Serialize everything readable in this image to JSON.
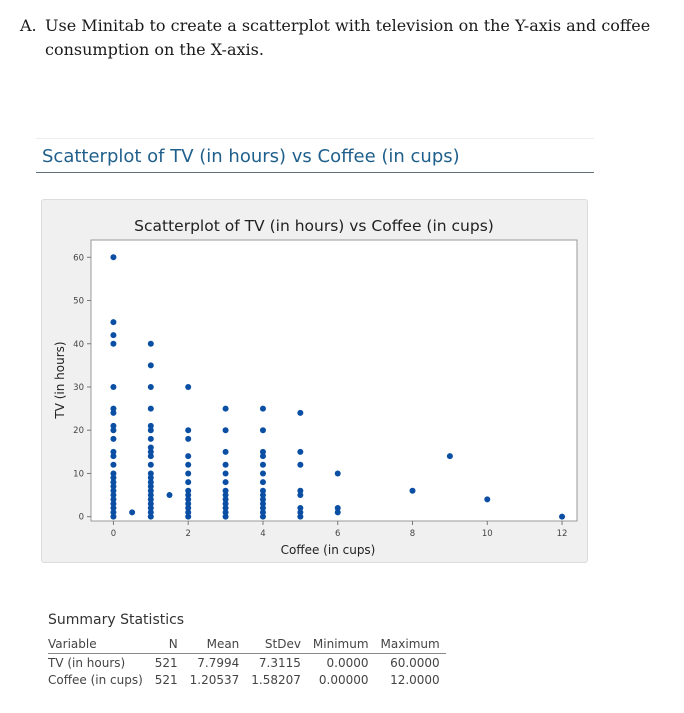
{
  "question": {
    "letter": "A.",
    "text": "Use Minitab to create a scatterplot with television on the Y-axis and coffee consumption on the X-axis."
  },
  "section_title": "Scatterplot of TV (in hours) vs Coffee (in cups)",
  "chart_data": {
    "type": "scatter",
    "title": "Scatterplot of TV (in hours) vs Coffee (in cups)",
    "xlabel": "Coffee (in cups)",
    "ylabel": "TV (in hours)",
    "xlim": [
      -0.6,
      12.4
    ],
    "ylim": [
      -1,
      64
    ],
    "xticks": [
      0,
      2,
      4,
      6,
      8,
      10,
      12
    ],
    "yticks": [
      0,
      10,
      20,
      30,
      40,
      50,
      60
    ],
    "grid": false,
    "marker_color": "#0a4fa3",
    "points": [
      {
        "x": 0,
        "y": 0
      },
      {
        "x": 0,
        "y": 1
      },
      {
        "x": 0,
        "y": 2
      },
      {
        "x": 0,
        "y": 3
      },
      {
        "x": 0,
        "y": 4
      },
      {
        "x": 0,
        "y": 5
      },
      {
        "x": 0,
        "y": 6
      },
      {
        "x": 0,
        "y": 7
      },
      {
        "x": 0,
        "y": 8
      },
      {
        "x": 0,
        "y": 9
      },
      {
        "x": 0,
        "y": 10
      },
      {
        "x": 0,
        "y": 12
      },
      {
        "x": 0,
        "y": 14
      },
      {
        "x": 0,
        "y": 15
      },
      {
        "x": 0,
        "y": 18
      },
      {
        "x": 0,
        "y": 20
      },
      {
        "x": 0,
        "y": 21
      },
      {
        "x": 0,
        "y": 24
      },
      {
        "x": 0,
        "y": 25
      },
      {
        "x": 0,
        "y": 30
      },
      {
        "x": 0,
        "y": 40
      },
      {
        "x": 0,
        "y": 42
      },
      {
        "x": 0,
        "y": 45
      },
      {
        "x": 0,
        "y": 60
      },
      {
        "x": 0.5,
        "y": 1
      },
      {
        "x": 1,
        "y": 0
      },
      {
        "x": 1,
        "y": 1
      },
      {
        "x": 1,
        "y": 2
      },
      {
        "x": 1,
        "y": 3
      },
      {
        "x": 1,
        "y": 4
      },
      {
        "x": 1,
        "y": 5
      },
      {
        "x": 1,
        "y": 6
      },
      {
        "x": 1,
        "y": 7
      },
      {
        "x": 1,
        "y": 8
      },
      {
        "x": 1,
        "y": 9
      },
      {
        "x": 1,
        "y": 10
      },
      {
        "x": 1,
        "y": 12
      },
      {
        "x": 1,
        "y": 14
      },
      {
        "x": 1,
        "y": 15
      },
      {
        "x": 1,
        "y": 16
      },
      {
        "x": 1,
        "y": 18
      },
      {
        "x": 1,
        "y": 20
      },
      {
        "x": 1,
        "y": 21
      },
      {
        "x": 1,
        "y": 25
      },
      {
        "x": 1,
        "y": 30
      },
      {
        "x": 1,
        "y": 35
      },
      {
        "x": 1,
        "y": 40
      },
      {
        "x": 1.5,
        "y": 5
      },
      {
        "x": 2,
        "y": 0
      },
      {
        "x": 2,
        "y": 1
      },
      {
        "x": 2,
        "y": 2
      },
      {
        "x": 2,
        "y": 3
      },
      {
        "x": 2,
        "y": 4
      },
      {
        "x": 2,
        "y": 5
      },
      {
        "x": 2,
        "y": 6
      },
      {
        "x": 2,
        "y": 8
      },
      {
        "x": 2,
        "y": 10
      },
      {
        "x": 2,
        "y": 12
      },
      {
        "x": 2,
        "y": 14
      },
      {
        "x": 2,
        "y": 18
      },
      {
        "x": 2,
        "y": 20
      },
      {
        "x": 2,
        "y": 30
      },
      {
        "x": 3,
        "y": 0
      },
      {
        "x": 3,
        "y": 1
      },
      {
        "x": 3,
        "y": 2
      },
      {
        "x": 3,
        "y": 3
      },
      {
        "x": 3,
        "y": 4
      },
      {
        "x": 3,
        "y": 5
      },
      {
        "x": 3,
        "y": 6
      },
      {
        "x": 3,
        "y": 8
      },
      {
        "x": 3,
        "y": 10
      },
      {
        "x": 3,
        "y": 12
      },
      {
        "x": 3,
        "y": 15
      },
      {
        "x": 3,
        "y": 20
      },
      {
        "x": 3,
        "y": 25
      },
      {
        "x": 4,
        "y": 0
      },
      {
        "x": 4,
        "y": 1
      },
      {
        "x": 4,
        "y": 2
      },
      {
        "x": 4,
        "y": 3
      },
      {
        "x": 4,
        "y": 4
      },
      {
        "x": 4,
        "y": 5
      },
      {
        "x": 4,
        "y": 6
      },
      {
        "x": 4,
        "y": 8
      },
      {
        "x": 4,
        "y": 10
      },
      {
        "x": 4,
        "y": 12
      },
      {
        "x": 4,
        "y": 14
      },
      {
        "x": 4,
        "y": 15
      },
      {
        "x": 4,
        "y": 20
      },
      {
        "x": 4,
        "y": 25
      },
      {
        "x": 5,
        "y": 0
      },
      {
        "x": 5,
        "y": 1
      },
      {
        "x": 5,
        "y": 2
      },
      {
        "x": 5,
        "y": 5
      },
      {
        "x": 5,
        "y": 6
      },
      {
        "x": 5,
        "y": 12
      },
      {
        "x": 5,
        "y": 15
      },
      {
        "x": 5,
        "y": 24
      },
      {
        "x": 6,
        "y": 1
      },
      {
        "x": 6,
        "y": 2
      },
      {
        "x": 6,
        "y": 10
      },
      {
        "x": 8,
        "y": 6
      },
      {
        "x": 9,
        "y": 14
      },
      {
        "x": 10,
        "y": 4
      },
      {
        "x": 12,
        "y": 0
      }
    ]
  },
  "summary": {
    "title": "Summary Statistics",
    "headers": [
      "Variable",
      "N",
      "Mean",
      "StDev",
      "Minimum",
      "Maximum"
    ],
    "rows": [
      [
        "TV (in hours)",
        "521",
        "7.7994",
        "7.3115",
        "0.0000",
        "60.0000"
      ],
      [
        "Coffee (in cups)",
        "521",
        "1.20537",
        "1.58207",
        "0.00000",
        "12.0000"
      ]
    ]
  }
}
